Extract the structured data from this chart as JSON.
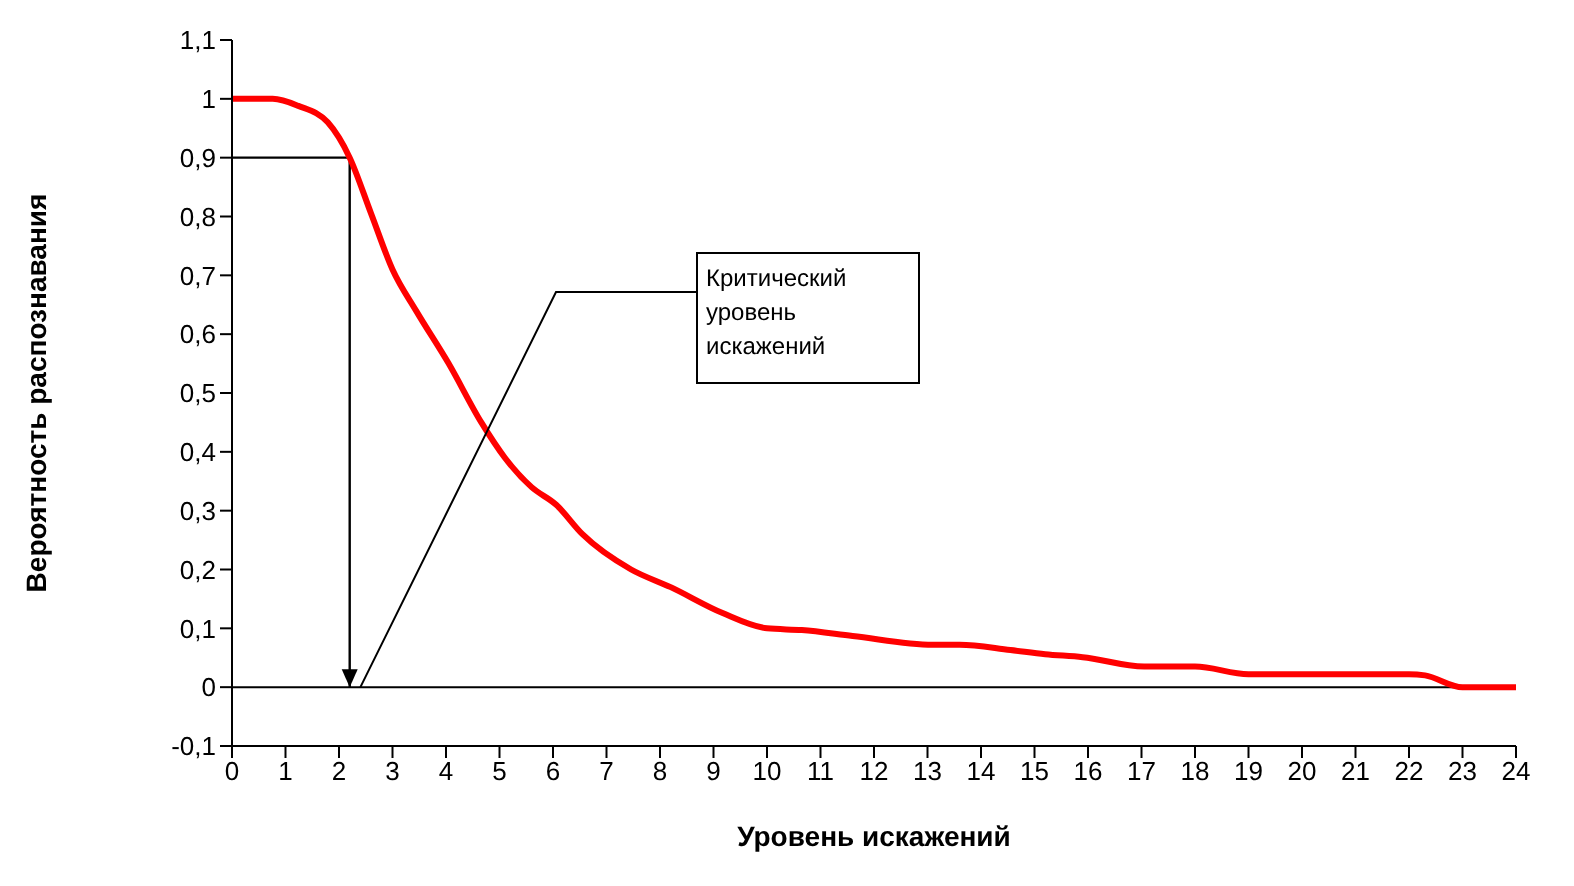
{
  "chart_data": {
    "type": "line",
    "xlabel": "Уровень искажений",
    "ylabel": "Вероятность распознавания",
    "series": [
      {
        "color": "#ff0000",
        "x": [
          0,
          0.76,
          1.24,
          1.79,
          2.2,
          2.6,
          3.0,
          3.44,
          4.05,
          4.66,
          5.1,
          5.6,
          6.06,
          6.55,
          7.46,
          8.2,
          9.17,
          10.0,
          10.65,
          11.6,
          13.1,
          13.6,
          14.55,
          15.2,
          15.9,
          17.05,
          18,
          19,
          22,
          22.3,
          23,
          24
        ],
        "values": [
          1.0,
          1.0,
          0.988,
          0.96,
          0.9,
          0.805,
          0.71,
          0.64,
          0.55,
          0.45,
          0.39,
          0.34,
          0.31,
          0.26,
          0.2,
          0.17,
          0.126,
          0.1,
          0.097,
          0.087,
          0.072,
          0.072,
          0.063,
          0.056,
          0.051,
          0.035,
          0.035,
          0.022,
          0.022,
          0.02,
          0,
          0
        ]
      }
    ],
    "xlim": [
      0,
      24
    ],
    "xticks": [
      0,
      1,
      2,
      3,
      4,
      5,
      6,
      7,
      8,
      9,
      10,
      11,
      12,
      13,
      14,
      15,
      16,
      17,
      18,
      19,
      20,
      21,
      22,
      23,
      24
    ],
    "ylim": [
      -0.1,
      1.1
    ],
    "yticks": [
      {
        "value": -0.1,
        "label": "-0,1"
      },
      0,
      {
        "value": 0.1,
        "label": "0,1"
      },
      {
        "value": 0.2,
        "label": "0,2"
      },
      {
        "value": 0.3,
        "label": "0,3"
      },
      {
        "value": 0.4,
        "label": "0,4"
      },
      {
        "value": 0.5,
        "label": "0,5"
      },
      {
        "value": 0.6,
        "label": "0,6"
      },
      {
        "value": 0.7,
        "label": "0,7"
      },
      {
        "value": 0.8,
        "label": "0,8"
      },
      {
        "value": 0.9,
        "label": "0,9"
      },
      1,
      {
        "value": 1.1,
        "label": "1,1"
      }
    ],
    "ref_lines": [
      {
        "axis": "y",
        "value": 0,
        "color": "#000000"
      },
      {
        "axis": "y",
        "value": 0.9,
        "color": "#000000"
      },
      {
        "axis": "x",
        "value": 2.2,
        "color": "#000000"
      }
    ],
    "annotations": [
      {
        "text": "Критический уровень искажений",
        "x": 2.4,
        "y": 0
      }
    ],
    "marker": "none",
    "line_style": "solid"
  }
}
